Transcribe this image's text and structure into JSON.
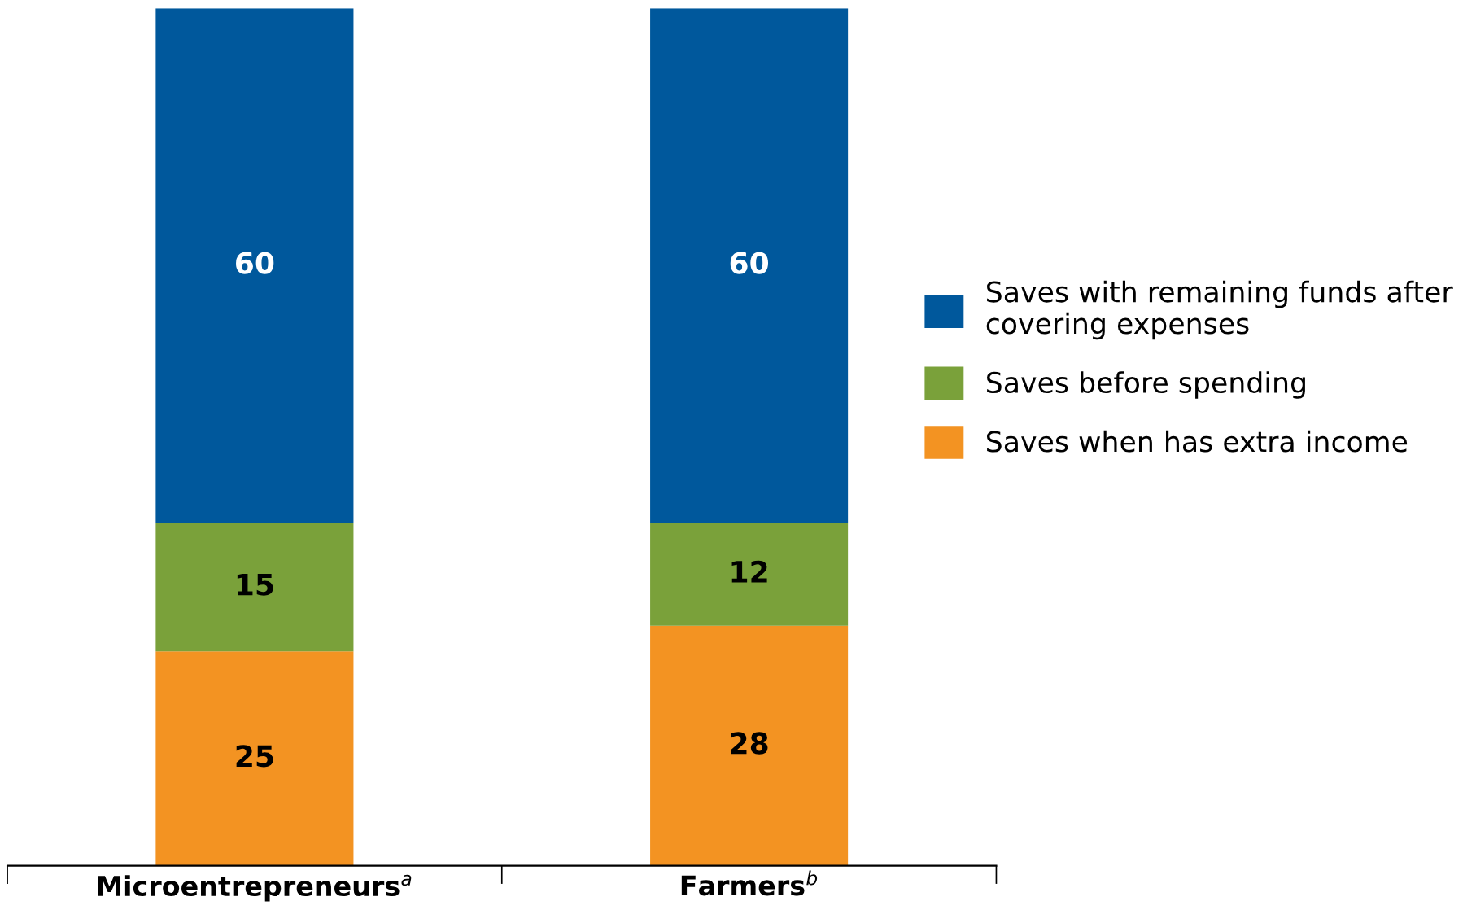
{
  "chart_data": {
    "type": "bar",
    "stacked": true,
    "categories": [
      "Microentrepreneurs$^{a}$",
      "Farmers$^{b}$"
    ],
    "series": [
      {
        "name": "Saves when has extra income",
        "color": "#f39322",
        "values": [
          25,
          28
        ]
      },
      {
        "name": "Saves before spending",
        "color": "#7aa13a",
        "values": [
          15,
          12
        ]
      },
      {
        "name": "Saves with remaining funds after covering expenses",
        "color": "#00589c",
        "values": [
          60,
          60
        ]
      }
    ],
    "data_labels": true,
    "legend": "right",
    "grid": false
  }
}
